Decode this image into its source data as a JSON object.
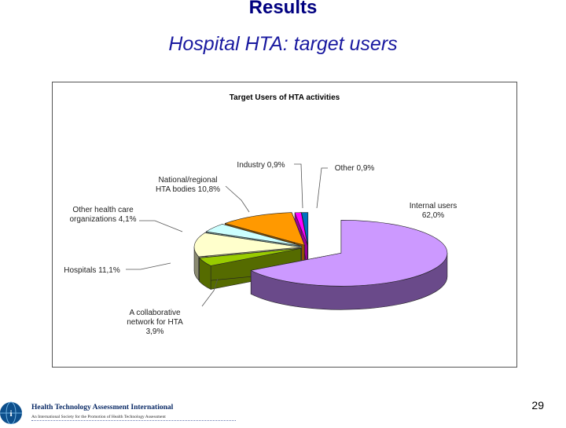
{
  "slide": {
    "title": "Results",
    "subtitle": "Hospital HTA: target users",
    "page_number": "29"
  },
  "footer": {
    "org_name": "Health Technology Assessment International",
    "tagline": "An International Society for the Promotion of Health Technology Assessment"
  },
  "chart_data": {
    "type": "pie",
    "style": "3d-exploded",
    "title": "Target Users of HTA activities",
    "slices": [
      {
        "label": "Internal users",
        "value_label": "62,0%",
        "value": 62.0,
        "color": "#cc99ff",
        "side": "#6a4a8a"
      },
      {
        "label": "A collaborative network for HTA",
        "value_label": "3,9%",
        "value": 3.9,
        "color": "#99cc00",
        "side": "#556b00"
      },
      {
        "label": "Hospitals",
        "value_label": "11,1%",
        "value": 11.1,
        "color": "#ffffcc",
        "side": "#8a8a70"
      },
      {
        "label": "Other health care organizations",
        "value_label": "4,1%",
        "value": 4.1,
        "color": "#ccffff",
        "side": "#6a8a8a"
      },
      {
        "label": "National/regional HTA bodies",
        "value_label": "10,8%",
        "value": 10.8,
        "color": "#ff9900",
        "side": "#8a5200"
      },
      {
        "label": "Industry",
        "value_label": "0,9%",
        "value": 0.9,
        "color": "#ff00ff",
        "side": "#990099"
      },
      {
        "label": "Other",
        "value_label": "0,9%",
        "value": 0.9,
        "color": "#0070c0",
        "side": "#00406e"
      }
    ],
    "label_text": [
      [
        "Internal users",
        "62,0%"
      ],
      [
        "A collaborative",
        "network for HTA",
        "3,9%"
      ],
      [
        "Hospitals 11,1%"
      ],
      [
        "Other health care",
        "organizations 4,1%"
      ],
      [
        "National/regional",
        "HTA bodies 10,8%"
      ],
      [
        "Industry 0,9%"
      ],
      [
        "Other 0,9%"
      ]
    ]
  }
}
